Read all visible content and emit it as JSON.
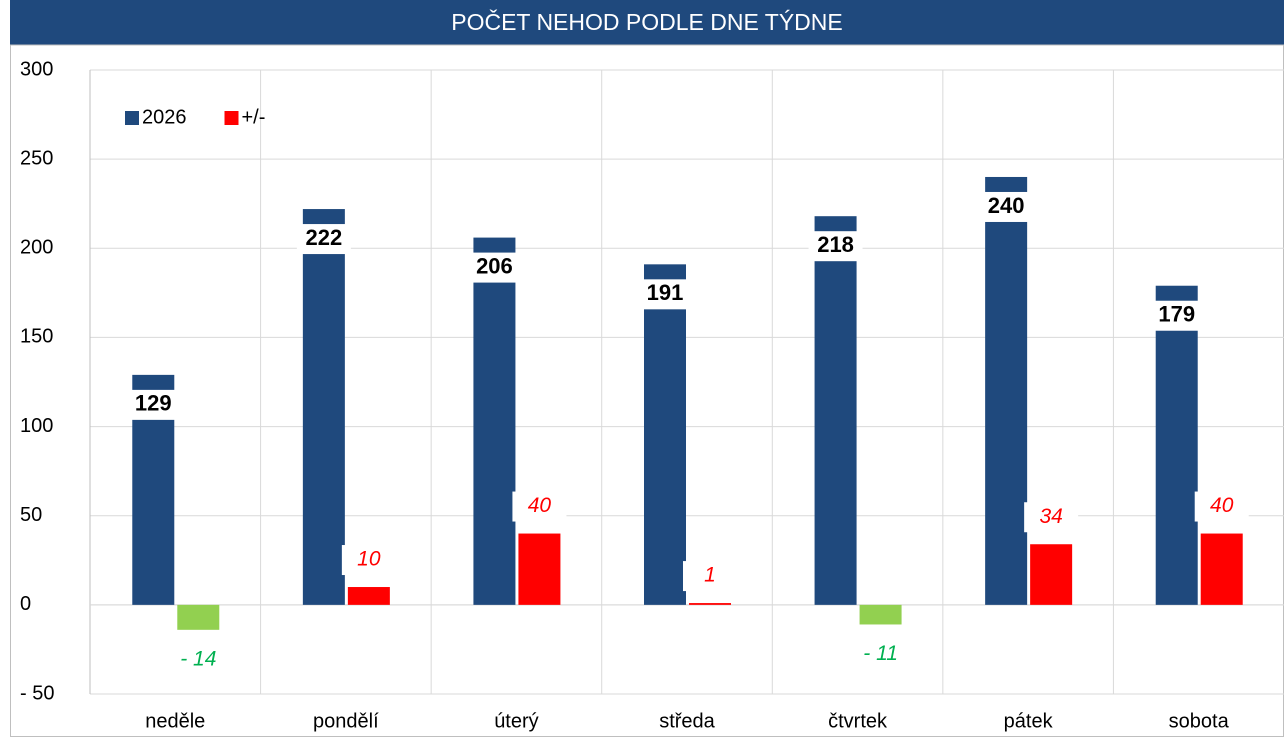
{
  "chart_data": {
    "type": "bar",
    "title": "POČET NEHOD PODLE DNE TÝDNE",
    "categories": [
      "neděle",
      "pondělí",
      "úterý",
      "středa",
      "čtvrtek",
      "pátek",
      "sobota"
    ],
    "series": [
      {
        "name": "2026",
        "color": "#1f497d",
        "values": [
          129,
          222,
          206,
          191,
          218,
          240,
          179
        ]
      },
      {
        "name": "+/-",
        "color": "#ff0000",
        "negative_color": "#92d050",
        "label_color": "#ff0000",
        "negative_label_color": "#00b050",
        "values": [
          -14,
          10,
          40,
          1,
          -11,
          34,
          40
        ],
        "value_labels": [
          "- 14",
          "10",
          "40",
          "1",
          "- 11",
          "34",
          "40"
        ]
      }
    ],
    "ylim": [
      -50,
      300
    ],
    "yticks": [
      {
        "value": -50,
        "label": "- 50"
      },
      0,
      50,
      100,
      150,
      200,
      250,
      300
    ],
    "grid": true,
    "legend": "top-left"
  }
}
